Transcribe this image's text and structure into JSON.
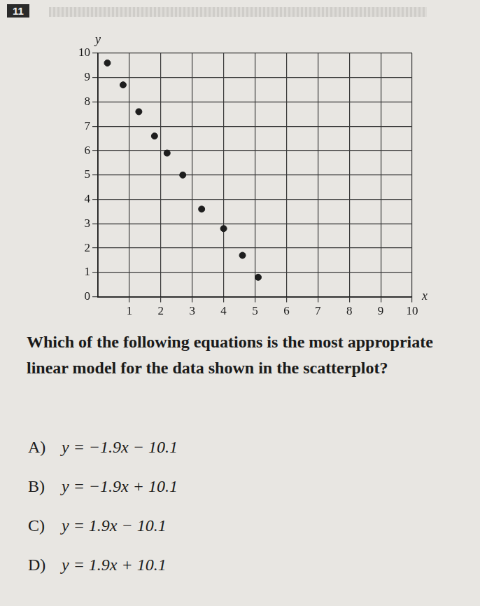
{
  "number": "11",
  "chart_data": {
    "type": "scatter",
    "x_label": "x",
    "y_label": "y",
    "x": [
      0.3,
      0.8,
      1.3,
      1.8,
      2.2,
      2.7,
      3.3,
      4.0,
      4.6,
      5.1
    ],
    "values": [
      9.6,
      8.7,
      7.6,
      6.6,
      5.9,
      5.0,
      3.6,
      2.8,
      1.7,
      0.8
    ],
    "color": "#1e1e1e",
    "marker": "circle",
    "xlim": [
      0,
      10
    ],
    "xticks": [
      1,
      2,
      3,
      4,
      5,
      6,
      7,
      8,
      9,
      10
    ],
    "ylim": [
      0,
      10
    ],
    "yticks": [
      0,
      1,
      2,
      3,
      4,
      5,
      6,
      7,
      8,
      9,
      10
    ],
    "grid": true
  },
  "question": "Which of the following equations is the most appropriate linear model for the data shown in the scatterplot?",
  "choices": [
    {
      "label": "A)",
      "text": "y = −1.9x − 10.1"
    },
    {
      "label": "B)",
      "text": "y = −1.9x + 10.1"
    },
    {
      "label": "C)",
      "text": "y = 1.9x − 10.1"
    },
    {
      "label": "D)",
      "text": "y = 1.9x + 10.1"
    }
  ]
}
